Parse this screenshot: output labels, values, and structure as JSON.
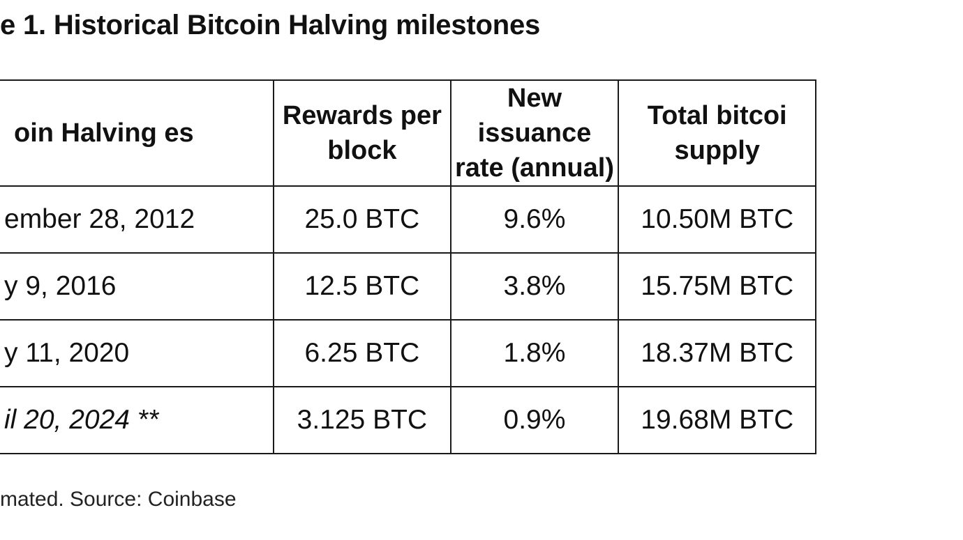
{
  "document": {
    "title": "e 1. Historical Bitcoin Halving milestones",
    "footnote": "mated. Source: Coinbase"
  },
  "table": {
    "headers": [
      "oin Halving es",
      "Rewards per block",
      "New issuance rate (annual)",
      "Total bitcoi supply"
    ],
    "rows": [
      {
        "date": "ember 28, 2012",
        "reward": "25.0 BTC",
        "rate": "9.6%",
        "supply": "10.50M BTC",
        "italic": false
      },
      {
        "date": "y 9, 2016",
        "reward": "12.5 BTC",
        "rate": "3.8%",
        "supply": "15.75M BTC",
        "italic": false
      },
      {
        "date": "y 11, 2020",
        "reward": "6.25 BTC",
        "rate": "1.8%",
        "supply": "18.37M BTC",
        "italic": false
      },
      {
        "date": "il 20, 2024 **",
        "reward": "3.125 BTC",
        "rate": "0.9%",
        "supply": "19.68M BTC",
        "italic": true
      }
    ]
  }
}
